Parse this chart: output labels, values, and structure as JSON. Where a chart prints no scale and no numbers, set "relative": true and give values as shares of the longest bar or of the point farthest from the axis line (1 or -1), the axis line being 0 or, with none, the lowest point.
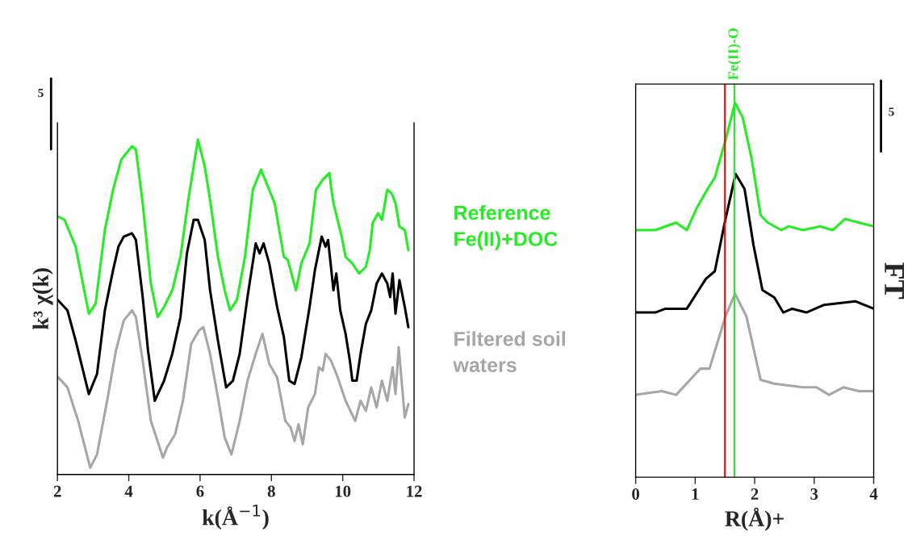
{
  "chart_data": [
    {
      "type": "line",
      "relative": true,
      "xlabel": "k(Å$^{−1}$)",
      "ylabel": "k³ χ(k)",
      "xlim": [
        2,
        12
      ],
      "xticks": [
        2,
        4,
        6,
        8,
        10,
        12
      ],
      "grid": false,
      "marker": "none",
      "line_style": "solid",
      "annotations": [
        "5"
      ],
      "series": [
        {
          "name": "Reference\nFe(II)+DOC",
          "color": "#22ee22",
          "x": [
            2.02,
            2.2,
            2.51,
            2.88,
            3.07,
            3.33,
            3.56,
            3.79,
            4.09,
            4.2,
            4.39,
            4.62,
            4.81,
            4.99,
            5.22,
            5.45,
            5.67,
            5.94,
            6.13,
            6.28,
            6.5,
            6.69,
            6.84,
            7.03,
            7.26,
            7.48,
            7.71,
            7.86,
            8.09,
            8.35,
            8.46,
            8.69,
            8.84,
            9.07,
            9.25,
            9.44,
            9.63,
            9.67,
            9.74,
            9.97,
            10.08,
            10.27,
            10.46,
            10.65,
            10.76,
            10.84,
            10.99,
            11.1,
            11.25,
            11.37,
            11.48,
            11.59,
            11.74,
            11.84
          ],
          "values": [
            0.77,
            0.76,
            0.68,
            0.48,
            0.51,
            0.73,
            0.85,
            0.94,
            0.98,
            0.97,
            0.81,
            0.57,
            0.47,
            0.5,
            0.55,
            0.65,
            0.82,
            1.0,
            0.92,
            0.82,
            0.65,
            0.55,
            0.49,
            0.52,
            0.65,
            0.85,
            0.91,
            0.87,
            0.81,
            0.65,
            0.64,
            0.55,
            0.63,
            0.69,
            0.85,
            0.88,
            0.9,
            0.86,
            0.81,
            0.71,
            0.65,
            0.63,
            0.6,
            0.62,
            0.67,
            0.75,
            0.78,
            0.76,
            0.85,
            0.84,
            0.81,
            0.74,
            0.73,
            0.67
          ]
        },
        {
          "color": "#000000",
          "x": [
            2.02,
            2.28,
            2.51,
            2.88,
            3.11,
            3.33,
            3.56,
            3.71,
            3.86,
            4.09,
            4.2,
            4.39,
            4.54,
            4.73,
            4.99,
            5.22,
            5.45,
            5.63,
            5.82,
            5.94,
            6.13,
            6.28,
            6.5,
            6.73,
            6.92,
            7.11,
            7.33,
            7.56,
            7.67,
            7.78,
            7.94,
            8.16,
            8.35,
            8.5,
            8.65,
            8.84,
            9.07,
            9.22,
            9.41,
            9.52,
            9.59,
            9.74,
            9.82,
            9.93,
            10.08,
            10.2,
            10.27,
            10.39,
            10.5,
            10.65,
            10.8,
            10.95,
            11.1,
            11.25,
            11.33,
            11.4,
            11.48,
            11.59,
            11.74,
            11.84
          ],
          "values": [
            0.52,
            0.49,
            0.4,
            0.24,
            0.3,
            0.49,
            0.61,
            0.68,
            0.71,
            0.72,
            0.7,
            0.53,
            0.37,
            0.22,
            0.28,
            0.36,
            0.47,
            0.66,
            0.76,
            0.76,
            0.7,
            0.55,
            0.4,
            0.26,
            0.28,
            0.36,
            0.53,
            0.69,
            0.66,
            0.69,
            0.63,
            0.5,
            0.41,
            0.28,
            0.27,
            0.35,
            0.5,
            0.61,
            0.71,
            0.68,
            0.7,
            0.55,
            0.6,
            0.49,
            0.42,
            0.34,
            0.28,
            0.28,
            0.36,
            0.45,
            0.49,
            0.57,
            0.6,
            0.57,
            0.53,
            0.6,
            0.48,
            0.58,
            0.5,
            0.44
          ]
        },
        {
          "name": "Filtered soil\nwaters",
          "color": "#a6a6a6",
          "x": [
            2.02,
            2.28,
            2.58,
            2.92,
            3.11,
            3.41,
            3.64,
            3.86,
            4.09,
            4.2,
            4.39,
            4.62,
            4.96,
            5.07,
            5.3,
            5.52,
            5.75,
            5.97,
            6.09,
            6.28,
            6.5,
            6.69,
            6.88,
            7.11,
            7.33,
            7.56,
            7.75,
            7.94,
            8.16,
            8.39,
            8.54,
            8.65,
            8.76,
            8.88,
            9.03,
            9.22,
            9.33,
            9.44,
            9.52,
            9.67,
            9.86,
            10.08,
            10.35,
            10.5,
            10.65,
            10.8,
            10.95,
            11.1,
            11.25,
            11.4,
            11.48,
            11.57,
            11.74,
            11.84
          ],
          "values": [
            0.29,
            0.26,
            0.16,
            0.02,
            0.06,
            0.23,
            0.37,
            0.46,
            0.49,
            0.47,
            0.34,
            0.16,
            0.05,
            0.08,
            0.12,
            0.22,
            0.39,
            0.43,
            0.44,
            0.36,
            0.23,
            0.11,
            0.06,
            0.16,
            0.28,
            0.36,
            0.42,
            0.33,
            0.29,
            0.16,
            0.14,
            0.1,
            0.15,
            0.09,
            0.2,
            0.24,
            0.32,
            0.31,
            0.36,
            0.34,
            0.29,
            0.22,
            0.16,
            0.22,
            0.19,
            0.26,
            0.2,
            0.28,
            0.22,
            0.32,
            0.24,
            0.38,
            0.17,
            0.21
          ]
        }
      ]
    },
    {
      "type": "line",
      "relative": true,
      "xlabel": "R(Å)+",
      "ylabel": "FT",
      "xlim": [
        0,
        4
      ],
      "xticks": [
        0,
        1,
        2,
        3,
        4
      ],
      "grid": false,
      "marker": "none",
      "line_style": "solid",
      "annotations": [
        "5"
      ],
      "ref_lines": [
        {
          "axis": "x",
          "value": 1.5,
          "color": "#ff0000"
        },
        {
          "axis": "x",
          "value": 1.66,
          "label": "Fe(II)-O",
          "color": "#22ee22"
        }
      ],
      "series": [
        {
          "color": "#22ee22",
          "x": [
            0,
            0.33,
            0.68,
            0.86,
            1.03,
            1.21,
            1.33,
            1.51,
            1.67,
            1.8,
            1.95,
            2.1,
            2.22,
            2.45,
            2.57,
            2.81,
            3.1,
            3.31,
            3.52,
            3.75,
            4.0
          ],
          "values": [
            0.66,
            0.66,
            0.68,
            0.66,
            0.72,
            0.77,
            0.8,
            0.9,
            1.0,
            0.96,
            0.85,
            0.7,
            0.68,
            0.66,
            0.67,
            0.66,
            0.67,
            0.66,
            0.69,
            0.68,
            0.67
          ]
        },
        {
          "color": "#000000",
          "x": [
            0,
            0.18,
            0.33,
            0.5,
            0.74,
            0.86,
            1.06,
            1.18,
            1.33,
            1.51,
            1.68,
            1.83,
            1.98,
            2.13,
            2.33,
            2.48,
            2.63,
            2.87,
            3.16,
            3.69,
            4.0
          ],
          "values": [
            0.44,
            0.44,
            0.44,
            0.45,
            0.45,
            0.45,
            0.5,
            0.53,
            0.55,
            0.69,
            0.81,
            0.77,
            0.62,
            0.5,
            0.48,
            0.44,
            0.45,
            0.44,
            0.46,
            0.47,
            0.45
          ]
        },
        {
          "color": "#a6a6a6",
          "x": [
            0,
            0.44,
            0.68,
            0.97,
            1.09,
            1.24,
            1.51,
            1.67,
            1.86,
            2.1,
            2.33,
            2.81,
            3.04,
            3.25,
            3.49,
            3.75,
            4.0
          ],
          "values": [
            0.22,
            0.23,
            0.22,
            0.27,
            0.29,
            0.29,
            0.43,
            0.49,
            0.43,
            0.26,
            0.25,
            0.24,
            0.24,
            0.22,
            0.24,
            0.23,
            0.23
          ]
        }
      ]
    }
  ]
}
